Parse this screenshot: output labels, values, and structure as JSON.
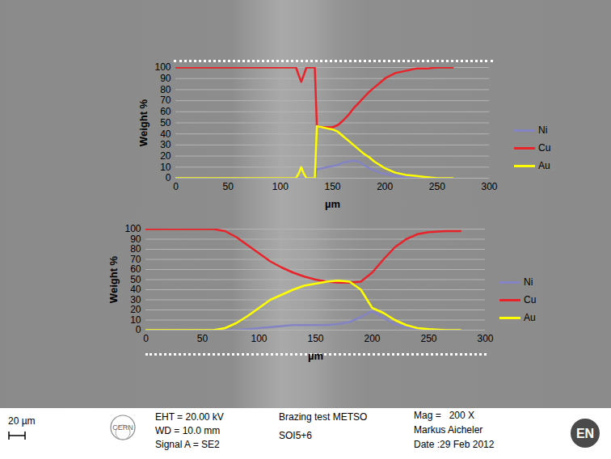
{
  "chart_data": [
    {
      "type": "line",
      "x_label": "µm",
      "y_label": "Weight %",
      "x": [
        0,
        115,
        118,
        120,
        122,
        125,
        130,
        133,
        135,
        140,
        145,
        150,
        155,
        160,
        165,
        170,
        175,
        180,
        185,
        190,
        195,
        200,
        210,
        220,
        230,
        240,
        250,
        265
      ],
      "series": [
        {
          "name": "Ni",
          "color": "#8484c4",
          "values": [
            0,
            0,
            0,
            0,
            0,
            0,
            0,
            0,
            8,
            9,
            10,
            11,
            12,
            14,
            15,
            16,
            15,
            12,
            9,
            7,
            5,
            4,
            2,
            1,
            0,
            0,
            0,
            0
          ]
        },
        {
          "name": "Cu",
          "color": "#e8242a",
          "values": [
            100,
            100,
            92,
            87,
            92,
            100,
            100,
            100,
            47,
            46,
            46,
            46,
            48,
            52,
            57,
            63,
            68,
            73,
            78,
            82,
            86,
            90,
            95,
            97,
            99,
            99,
            100,
            100
          ]
        },
        {
          "name": "Au",
          "color": "#ffff00",
          "values": [
            0,
            0,
            5,
            10,
            5,
            0,
            0,
            0,
            47,
            46,
            45,
            44,
            42,
            38,
            34,
            30,
            26,
            22,
            19,
            15,
            12,
            9,
            5,
            3,
            2,
            1,
            0,
            0
          ]
        }
      ],
      "xlim": [
        0,
        300
      ],
      "xticks": [
        0,
        50,
        100,
        150,
        200,
        250,
        300
      ],
      "ylim": [
        0,
        100
      ],
      "yticks": [
        0,
        10,
        20,
        30,
        40,
        50,
        60,
        70,
        80,
        90,
        100
      ],
      "grid": true,
      "legend": "right"
    },
    {
      "type": "line",
      "x_label": "µm",
      "y_label": "Weight %",
      "x": [
        0,
        60,
        70,
        80,
        90,
        100,
        110,
        120,
        130,
        140,
        150,
        160,
        170,
        180,
        190,
        200,
        210,
        220,
        230,
        240,
        250,
        265,
        278
      ],
      "series": [
        {
          "name": "Ni",
          "color": "#8484c4",
          "values": [
            0,
            0,
            0,
            0,
            1,
            2,
            3,
            4,
            5,
            5,
            5,
            5,
            6,
            8,
            13,
            19,
            12,
            6,
            3,
            1,
            0,
            0,
            0
          ]
        },
        {
          "name": "Cu",
          "color": "#e8242a",
          "values": [
            100,
            100,
            98,
            92,
            84,
            76,
            68,
            62,
            57,
            53,
            50,
            48,
            47,
            47,
            48,
            57,
            70,
            82,
            90,
            95,
            97,
            98,
            98
          ]
        },
        {
          "name": "Au",
          "color": "#ffff00",
          "values": [
            0,
            0,
            2,
            7,
            14,
            22,
            30,
            35,
            40,
            44,
            46,
            48,
            49,
            48,
            40,
            22,
            17,
            10,
            5,
            2,
            1,
            0,
            0
          ]
        }
      ],
      "xlim": [
        0,
        300
      ],
      "xticks": [
        0,
        50,
        100,
        150,
        200,
        250,
        300
      ],
      "ylim": [
        0,
        100
      ],
      "yticks": [
        0,
        10,
        20,
        30,
        40,
        50,
        60,
        70,
        80,
        90,
        100
      ],
      "grid": true,
      "legend": "right"
    }
  ],
  "footer": {
    "scale_bar": "20 µm",
    "logo": "CERN",
    "column1": [
      "EHT = 20.00 kV",
      "WD = 10.0 mm",
      "Signal A = SE2"
    ],
    "column2": [
      "Brazing test METSO",
      "SOI5+6"
    ],
    "column3": [
      "Mag =   200 X",
      "Markus Aicheler",
      "Date :29 Feb 2012"
    ],
    "badge": "EN"
  }
}
